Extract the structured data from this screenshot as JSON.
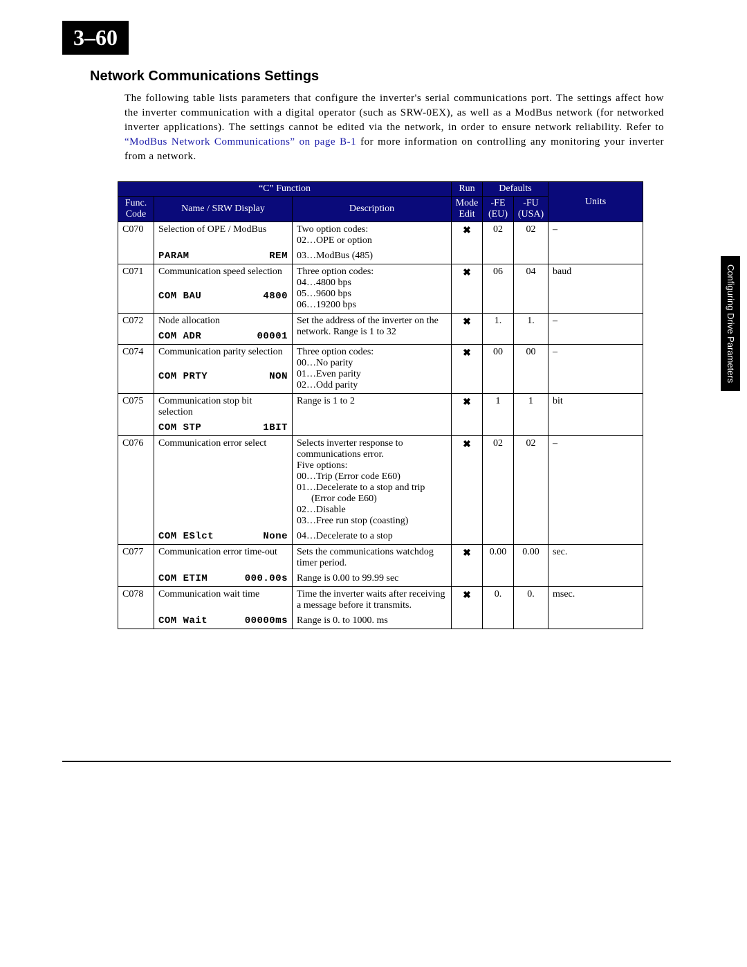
{
  "pageNumber": "3–60",
  "sectionHeading": "Network Communications Settings",
  "introPart1": "The following table lists parameters that configure the inverter's serial communications port. The settings affect how the inverter communication with a digital operator (such as SRW-0EX), as well as a ModBus network (for networked inverter applications). The settings cannot be edited via the network, in order to ensure network reliability. Refer to ",
  "introLink": "“ModBus Network Communications” on page B-1",
  "introPart2": " for more information on controlling any monitoring your inverter from a network.",
  "sideTab": "Configuring Drive Parameters",
  "headers": {
    "cFunction": "“C” Function",
    "run": "Run",
    "defaults": "Defaults",
    "funcCode": "Func. Code",
    "nameSrw": "Name / SRW Display",
    "description": "Description",
    "modeEdit": "Mode Edit",
    "fe": "-FE (EU)",
    "fu": "-FU (USA)",
    "units": "Units"
  },
  "rows": [
    {
      "code": "C070",
      "name": "Selection of OPE / ModBus",
      "srwLeft": "PARAM",
      "srwRight": "REM",
      "descMain": "Two option codes:\n02…OPE or option",
      "descExtra": "03…ModBus (485)",
      "x": "✖",
      "fe": "02",
      "fu": "02",
      "units": "–"
    },
    {
      "code": "C071",
      "name": "Communication speed selection",
      "srwLeft": "COM BAU",
      "srwRight": "4800",
      "descMain": "Three option codes:\n04…4800 bps\n05…9600 bps\n06…19200 bps",
      "descExtra": "",
      "x": "✖",
      "fe": "06",
      "fu": "04",
      "units": "baud"
    },
    {
      "code": "C072",
      "name": "Node allocation",
      "srwLeft": "COM ADR",
      "srwRight": "00001",
      "descMain": "Set the address of the inverter on the network. Range is 1 to 32",
      "descExtra": "",
      "x": "✖",
      "fe": "1.",
      "fu": "1.",
      "units": "–"
    },
    {
      "code": "C074",
      "name": "Communication parity selection",
      "srwLeft": "COM PRTY",
      "srwRight": "NON",
      "descMain": "Three option codes:\n00…No parity\n01…Even parity\n02…Odd parity",
      "descExtra": "",
      "x": "✖",
      "fe": "00",
      "fu": "00",
      "units": "–"
    },
    {
      "code": "C075",
      "name": "Communication stop bit selection",
      "srwLeft": "COM STP",
      "srwRight": "1BIT",
      "descMain": "Range is 1 to 2",
      "descExtra": "",
      "x": "✖",
      "fe": "1",
      "fu": "1",
      "units": "bit"
    },
    {
      "code": "C076",
      "name": "Communication error select",
      "srwLeft": "COM ESlct",
      "srwRight": "None",
      "descMain": "Selects inverter response to communications error.\nFive options:\n00…Trip (Error code E60)\n01…Decelerate to a stop and trip\n      (Error code E60)\n02…Disable\n03…Free run stop (coasting)",
      "descExtra": "04…Decelerate to a stop",
      "x": "✖",
      "fe": "02",
      "fu": "02",
      "units": "–"
    },
    {
      "code": "C077",
      "name": "Communication error time-out",
      "srwLeft": "COM ETIM",
      "srwRight": "000.00s",
      "descMain": "Sets the communications watchdog timer period.",
      "descExtra": "Range is 0.00 to 99.99 sec",
      "x": "✖",
      "fe": "0.00",
      "fu": "0.00",
      "units": "sec."
    },
    {
      "code": "C078",
      "name": "Communication wait time",
      "srwLeft": "COM Wait",
      "srwRight": "00000ms",
      "descMain": "Time the inverter waits after receiving a message before it transmits.",
      "descExtra": "Range is 0. to 1000. ms",
      "x": "✖",
      "fe": "0.",
      "fu": "0.",
      "units": "msec."
    }
  ]
}
